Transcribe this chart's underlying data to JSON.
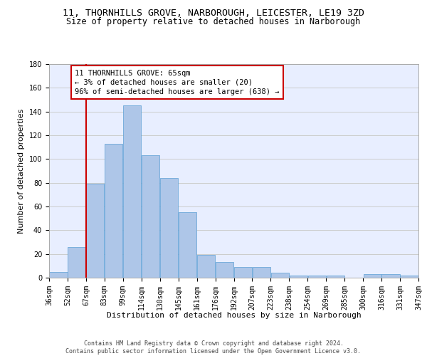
{
  "title1": "11, THORNHILLS GROVE, NARBOROUGH, LEICESTER, LE19 3ZD",
  "title2": "Size of property relative to detached houses in Narborough",
  "xlabel": "Distribution of detached houses by size in Narborough",
  "ylabel": "Number of detached properties",
  "bar_values": [
    5,
    26,
    79,
    113,
    145,
    103,
    84,
    55,
    19,
    13,
    9,
    9,
    4,
    2,
    2,
    2,
    0,
    3,
    3,
    2
  ],
  "bin_labels": [
    "36sqm",
    "52sqm",
    "67sqm",
    "83sqm",
    "99sqm",
    "114sqm",
    "130sqm",
    "145sqm",
    "161sqm",
    "176sqm",
    "192sqm",
    "207sqm",
    "223sqm",
    "238sqm",
    "254sqm",
    "269sqm",
    "285sqm",
    "300sqm",
    "316sqm",
    "331sqm",
    "347sqm"
  ],
  "bar_color": "#aec6e8",
  "bar_edge_color": "#5a9fd4",
  "vline_x": 1.5,
  "vline_color": "#cc0000",
  "annotation_text": "11 THORNHILLS GROVE: 65sqm\n← 3% of detached houses are smaller (20)\n96% of semi-detached houses are larger (638) →",
  "annotation_box_color": "#ffffff",
  "annotation_box_edge": "#cc0000",
  "ylim": [
    0,
    180
  ],
  "yticks": [
    0,
    20,
    40,
    60,
    80,
    100,
    120,
    140,
    160,
    180
  ],
  "grid_color": "#cccccc",
  "bg_color": "#e8eeff",
  "footer_text": "Contains HM Land Registry data © Crown copyright and database right 2024.\nContains public sector information licensed under the Open Government Licence v3.0.",
  "title1_fontsize": 9.5,
  "title2_fontsize": 8.5,
  "xlabel_fontsize": 8,
  "ylabel_fontsize": 8,
  "tick_fontsize": 7,
  "annotation_fontsize": 7.5,
  "footer_fontsize": 6
}
